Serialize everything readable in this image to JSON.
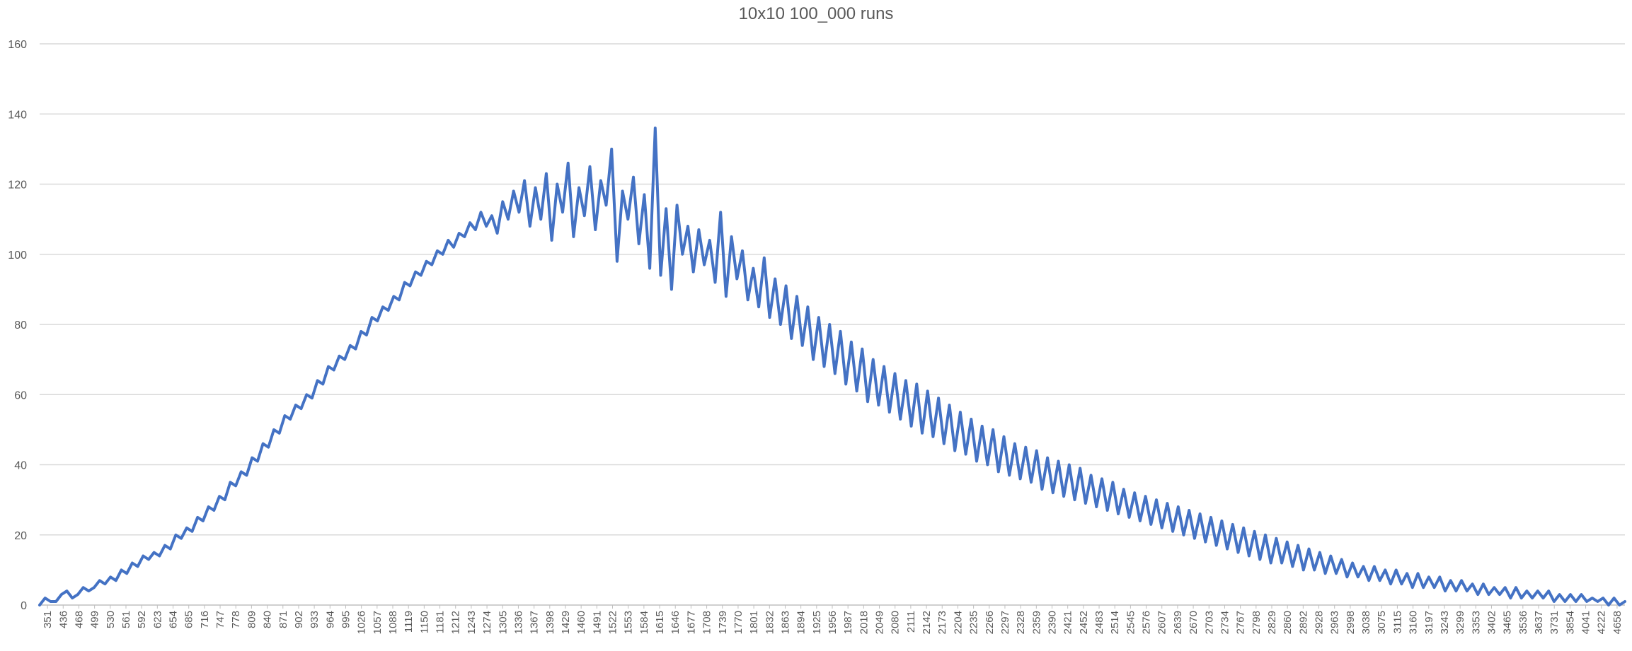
{
  "chart_data": {
    "type": "line",
    "title": "10x10 100_000 runs",
    "xlabel": "",
    "ylabel": "",
    "ylim": [
      0,
      160
    ],
    "yticks": [
      0,
      20,
      40,
      60,
      80,
      100,
      120,
      140,
      160
    ],
    "xlim": [
      351,
      4658
    ],
    "x_tick_labels": [
      "351",
      "436",
      "468",
      "499",
      "530",
      "561",
      "592",
      "623",
      "654",
      "685",
      "716",
      "747",
      "778",
      "809",
      "840",
      "871",
      "902",
      "933",
      "964",
      "995",
      "1026",
      "1057",
      "1088",
      "1119",
      "1150",
      "1181",
      "1212",
      "1243",
      "1274",
      "1305",
      "1336",
      "1367",
      "1398",
      "1429",
      "1460",
      "1491",
      "1522",
      "1553",
      "1584",
      "1615",
      "1646",
      "1677",
      "1708",
      "1739",
      "1770",
      "1801",
      "1832",
      "1863",
      "1894",
      "1925",
      "1956",
      "1987",
      "2018",
      "2049",
      "2080",
      "2111",
      "2142",
      "2173",
      "2204",
      "2235",
      "2266",
      "2297",
      "2328",
      "2359",
      "2390",
      "2421",
      "2452",
      "2483",
      "2514",
      "2545",
      "2576",
      "2607",
      "2639",
      "2670",
      "2703",
      "2734",
      "2767",
      "2798",
      "2829",
      "2860",
      "2892",
      "2928",
      "2963",
      "2998",
      "3038",
      "3075",
      "3115",
      "3160",
      "3197",
      "3243",
      "3299",
      "3353",
      "3402",
      "3465",
      "3536",
      "3637",
      "3731",
      "3854",
      "4041",
      "4222",
      "4658"
    ],
    "grid": true,
    "legend": "none",
    "series_color": "#4472c4",
    "series": [
      {
        "values": [
          0,
          2,
          1,
          1,
          3,
          4,
          2,
          3,
          5,
          4,
          5,
          7,
          6,
          8,
          7,
          10,
          9,
          12,
          11,
          14,
          13,
          15,
          14,
          17,
          16,
          20,
          19,
          22,
          21,
          25,
          24,
          28,
          27,
          31,
          30,
          35,
          34,
          38,
          37,
          42,
          41,
          46,
          45,
          50,
          49,
          54,
          53,
          57,
          56,
          60,
          59,
          64,
          63,
          68,
          67,
          71,
          70,
          74,
          73,
          78,
          77,
          82,
          81,
          85,
          84,
          88,
          87,
          92,
          91,
          95,
          94,
          98,
          97,
          101,
          100,
          104,
          102,
          106,
          105,
          109,
          107,
          112,
          108,
          111,
          106,
          115,
          110,
          118,
          112,
          121,
          108,
          119,
          110,
          123,
          104,
          120,
          112,
          126,
          105,
          119,
          111,
          125,
          107,
          121,
          114,
          130,
          98,
          118,
          110,
          122,
          103,
          117,
          96,
          136,
          94,
          113,
          90,
          114,
          100,
          108,
          95,
          107,
          97,
          104,
          92,
          112,
          88,
          105,
          93,
          101,
          87,
          96,
          85,
          99,
          82,
          93,
          80,
          91,
          76,
          88,
          74,
          85,
          70,
          82,
          68,
          80,
          66,
          78,
          63,
          75,
          61,
          73,
          58,
          70,
          57,
          68,
          55,
          66,
          53,
          64,
          51,
          63,
          49,
          61,
          48,
          59,
          46,
          57,
          44,
          55,
          43,
          53,
          41,
          51,
          40,
          50,
          38,
          48,
          37,
          46,
          36,
          45,
          35,
          44,
          33,
          42,
          32,
          41,
          31,
          40,
          30,
          39,
          29,
          37,
          28,
          36,
          27,
          35,
          26,
          33,
          25,
          32,
          24,
          31,
          23,
          30,
          22,
          29,
          21,
          28,
          20,
          27,
          19,
          26,
          18,
          25,
          17,
          24,
          16,
          23,
          15,
          22,
          14,
          21,
          13,
          20,
          12,
          19,
          12,
          18,
          11,
          17,
          10,
          16,
          10,
          15,
          9,
          14,
          9,
          13,
          8,
          12,
          8,
          11,
          7,
          11,
          7,
          10,
          6,
          10,
          6,
          9,
          5,
          9,
          5,
          8,
          5,
          8,
          4,
          7,
          4,
          7,
          4,
          6,
          3,
          6,
          3,
          5,
          3,
          5,
          2,
          5,
          2,
          4,
          2,
          4,
          2,
          4,
          1,
          3,
          1,
          3,
          1,
          3,
          1,
          2,
          1,
          2,
          0,
          2,
          0,
          1
        ]
      }
    ]
  }
}
